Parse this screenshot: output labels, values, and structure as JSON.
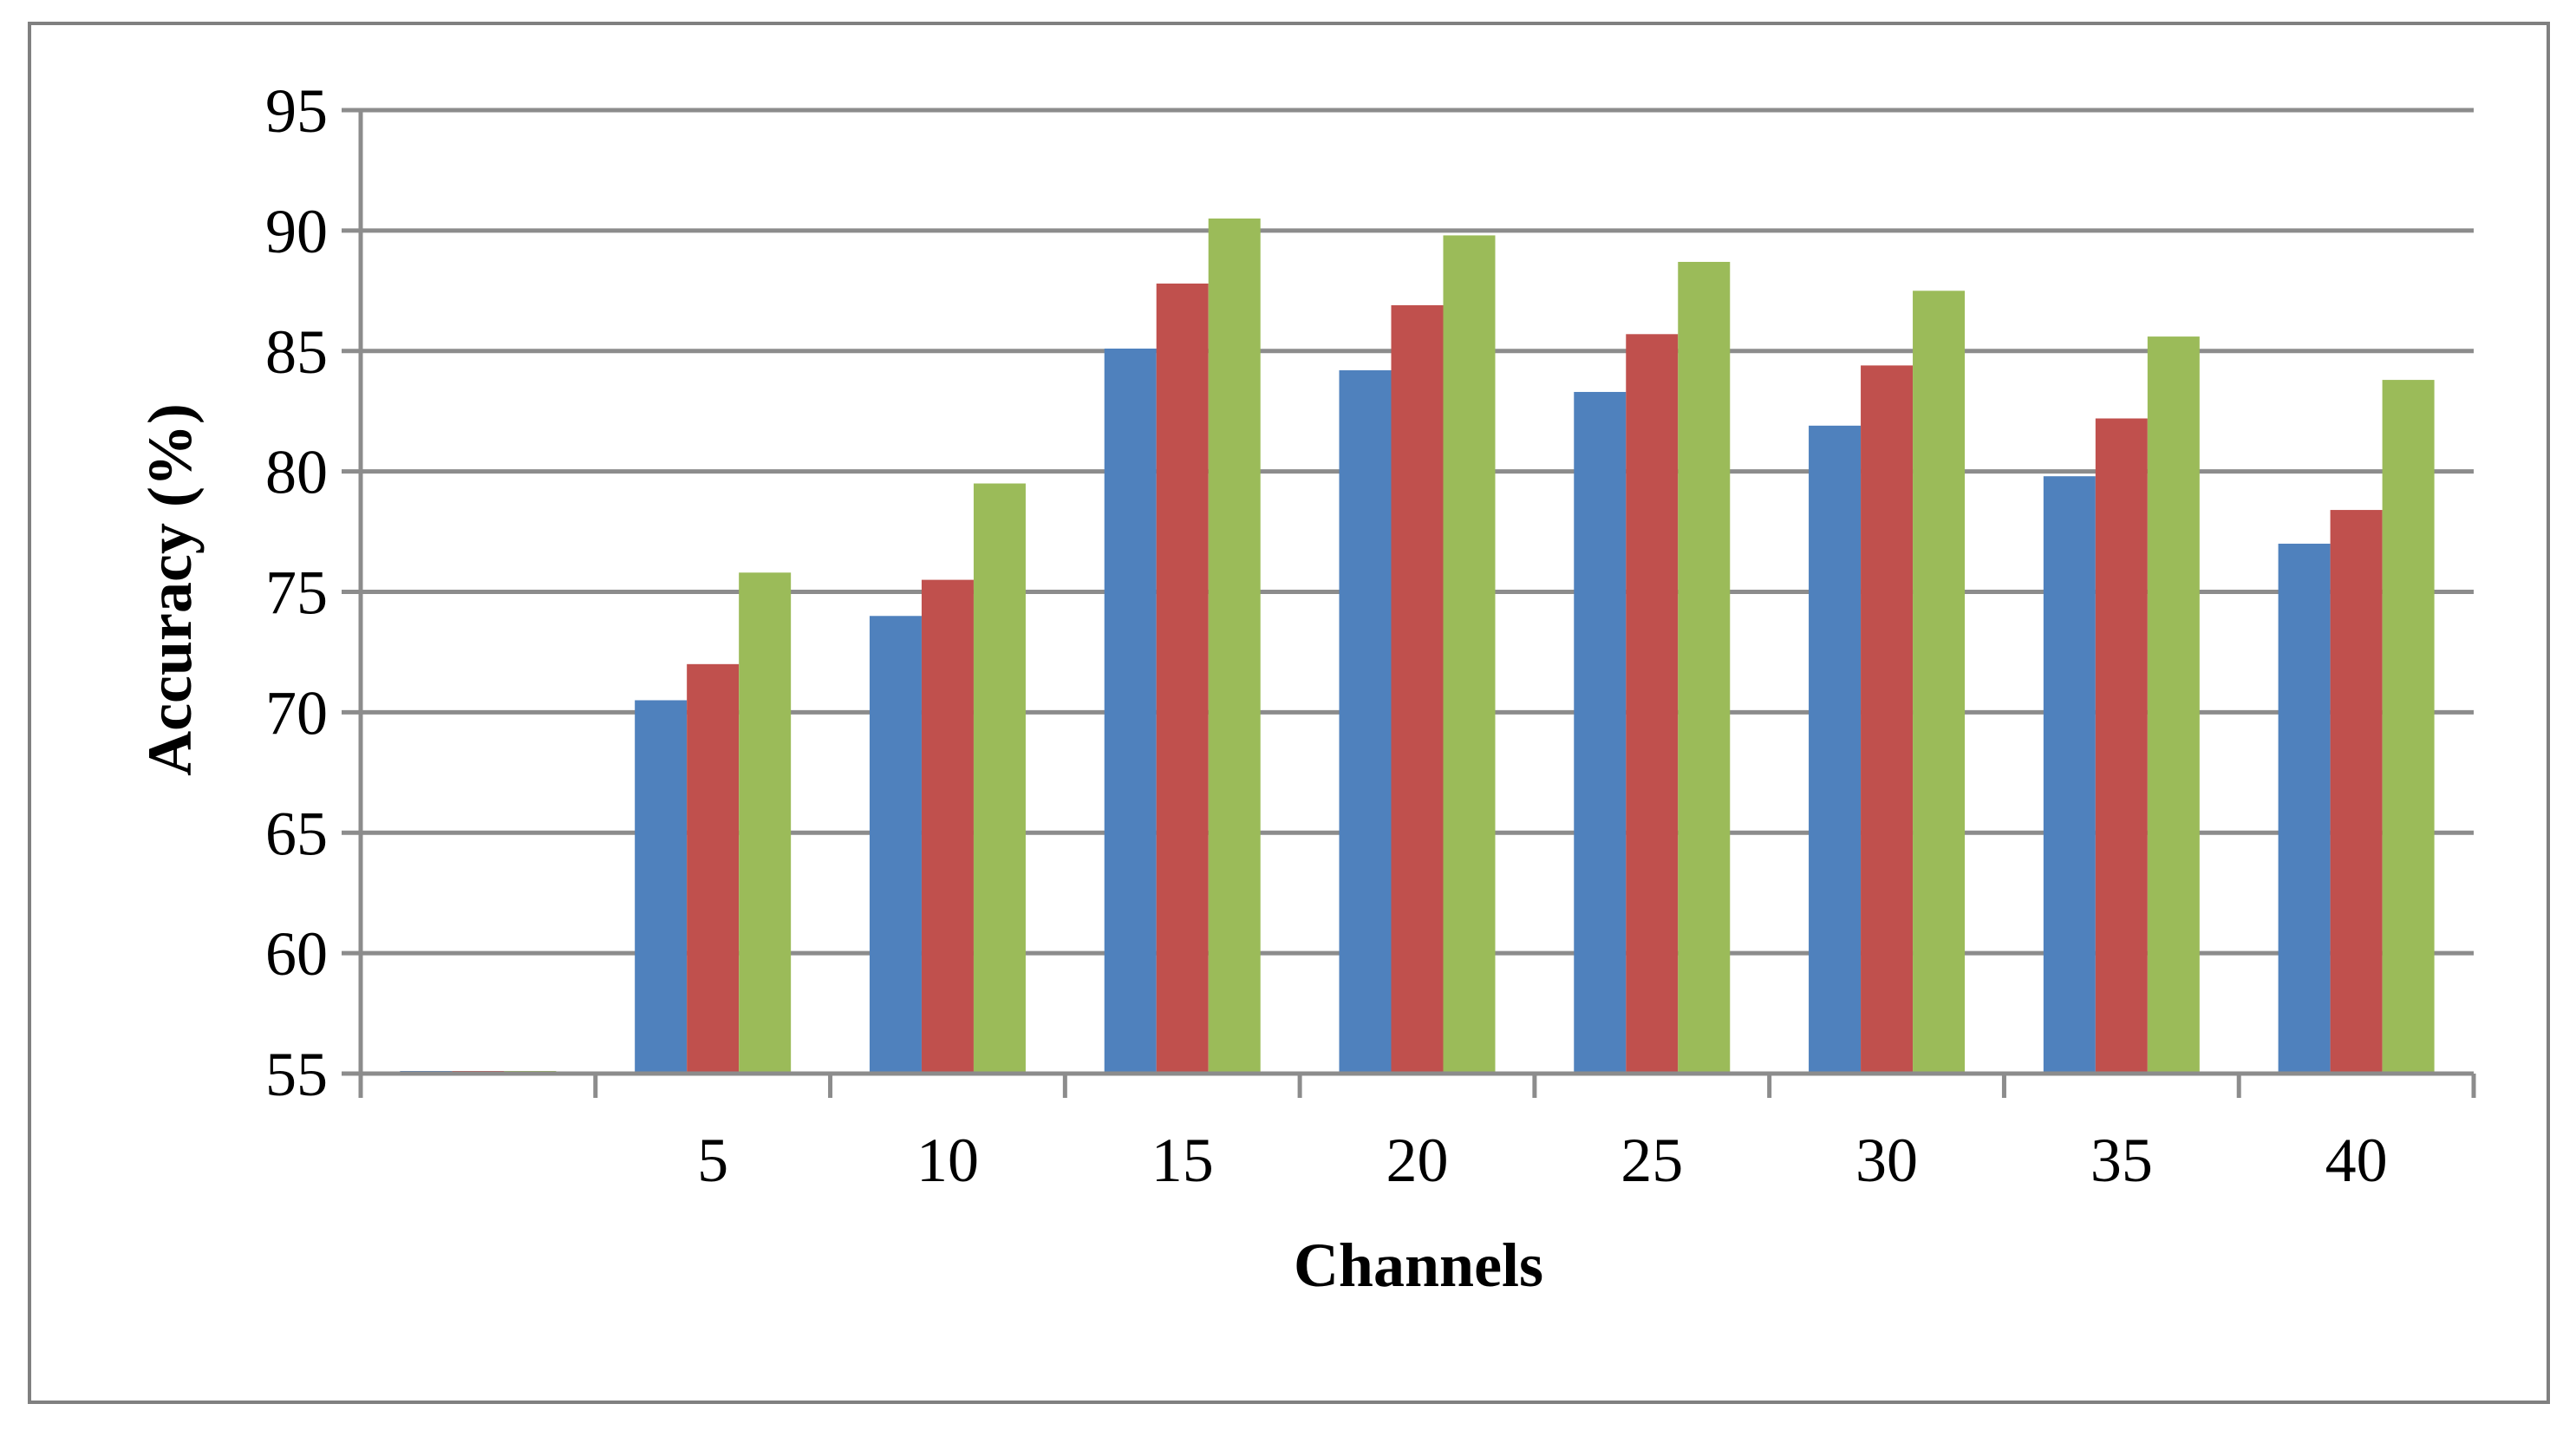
{
  "chart_data": {
    "type": "bar",
    "title": "",
    "xlabel": "Channels",
    "ylabel": "Accuracy (%)",
    "ylim": [
      55,
      95
    ],
    "yticks": [
      "55",
      "60",
      "65",
      "70",
      "75",
      "80",
      "85",
      "90",
      "95"
    ],
    "categories": [
      "",
      "5",
      "10",
      "15",
      "20",
      "25",
      "30",
      "35",
      "40"
    ],
    "grid": true,
    "legend": "none",
    "series": [
      {
        "color": "#4F81BD",
        "values": [
          54.8,
          70.5,
          74.0,
          85.1,
          84.2,
          83.3,
          81.9,
          79.8,
          77.0
        ]
      },
      {
        "color": "#C0504D",
        "values": [
          54.8,
          72.0,
          75.5,
          87.8,
          86.9,
          85.7,
          84.4,
          82.2,
          78.4
        ]
      },
      {
        "color": "#9BBB59",
        "values": [
          54.8,
          75.8,
          79.5,
          90.5,
          89.8,
          88.7,
          87.5,
          85.6,
          83.8
        ]
      }
    ]
  }
}
